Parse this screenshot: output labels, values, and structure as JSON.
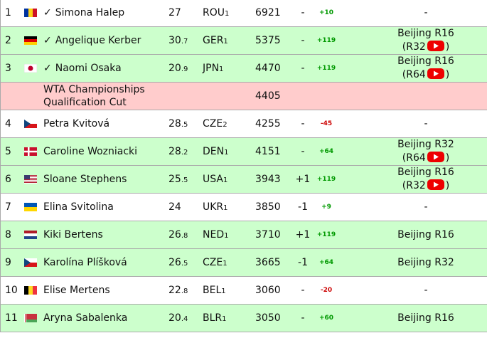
{
  "table": {
    "rows": [
      {
        "rank": "1",
        "check": "✓",
        "name": "Simona Halep",
        "age": "27",
        "country": "ROU",
        "country_sub": "1",
        "points": 6921,
        "change": "-",
        "delta": "+10",
        "tournament": "-",
        "color": "#ffffff"
      },
      {
        "rank": "2",
        "check": "✓",
        "name": "Angelique Kerber",
        "age": "30",
        "age_dec": ".7",
        "country": "GER",
        "country_sub": "1",
        "points": 5375,
        "change": "-",
        "delta": "+119",
        "tournament": "Beijing R16",
        "next": "(R32",
        "next_close": ")",
        "color": "#ccffcc"
      },
      {
        "rank": "3",
        "check": "✓",
        "name": "Naomi Osaka",
        "age": "20",
        "age_dec": ".9",
        "country": "JPN",
        "country_sub": "1",
        "points": 4470,
        "change": "-",
        "delta": "+119",
        "tournament": "Beijing R16",
        "next": "(R64",
        "next_close": ")",
        "color": "#ccffcc"
      },
      {
        "label": "WTA Championships Qualification Cut",
        "points": 4405,
        "color": "#ffcccc"
      },
      {
        "rank": "4",
        "name": "Petra Kvitová",
        "age": "28",
        "age_dec": ".5",
        "country": "CZE",
        "country_sub": "2",
        "points": 4255,
        "change": "-",
        "delta": "-45",
        "tournament": "-",
        "color": "#ffffff"
      },
      {
        "rank": "5",
        "name": "Caroline Wozniacki",
        "age": "28",
        "age_dec": ".2",
        "country": "DEN",
        "country_sub": "1",
        "points": 4151,
        "change": "-",
        "delta": "+64",
        "tournament": "Beijing R32",
        "next": "(R64",
        "next_close": ")",
        "color": "#ccffcc"
      },
      {
        "rank": "6",
        "name": "Sloane Stephens",
        "age": "25",
        "age_dec": ".5",
        "country": "USA",
        "country_sub": "1",
        "points": 3943,
        "change": "+1",
        "delta": "+119",
        "tournament": "Beijing R16",
        "next": "(R32",
        "next_close": ")",
        "color": "#ccffcc"
      },
      {
        "rank": "7",
        "name": "Elina Svitolina",
        "age": "24",
        "country": "UKR",
        "country_sub": "1",
        "points": 3850,
        "change": "-1",
        "delta": "+9",
        "tournament": "-",
        "color": "#ffffff"
      },
      {
        "rank": "8",
        "name": "Kiki Bertens",
        "age": "26",
        "age_dec": ".8",
        "country": "NED",
        "country_sub": "1",
        "points": 3710,
        "change": "+1",
        "delta": "+119",
        "tournament": "Beijing R16",
        "color": "#ccffcc"
      },
      {
        "rank": "9",
        "name": "Karolína Plíšková",
        "age": "26",
        "age_dec": ".5",
        "country": "CZE",
        "country_sub": "1",
        "points": 3665,
        "change": "-1",
        "delta": "+64",
        "tournament": "Beijing R32",
        "color": "#ccffcc"
      },
      {
        "rank": "10",
        "name": "Elise Mertens",
        "age": "22",
        "age_dec": ".8",
        "country": "BEL",
        "country_sub": "1",
        "points": 3060,
        "change": "-",
        "delta": "-20",
        "tournament": "-",
        "color": "#ffffff"
      },
      {
        "rank": "11",
        "name": "Aryna Sabalenka",
        "age": "20",
        "age_dec": ".4",
        "country": "BLR",
        "country_sub": "1",
        "points": 3050,
        "change": "-",
        "delta": "+60",
        "tournament": "Beijing R16",
        "color": "#ccffcc"
      }
    ]
  }
}
